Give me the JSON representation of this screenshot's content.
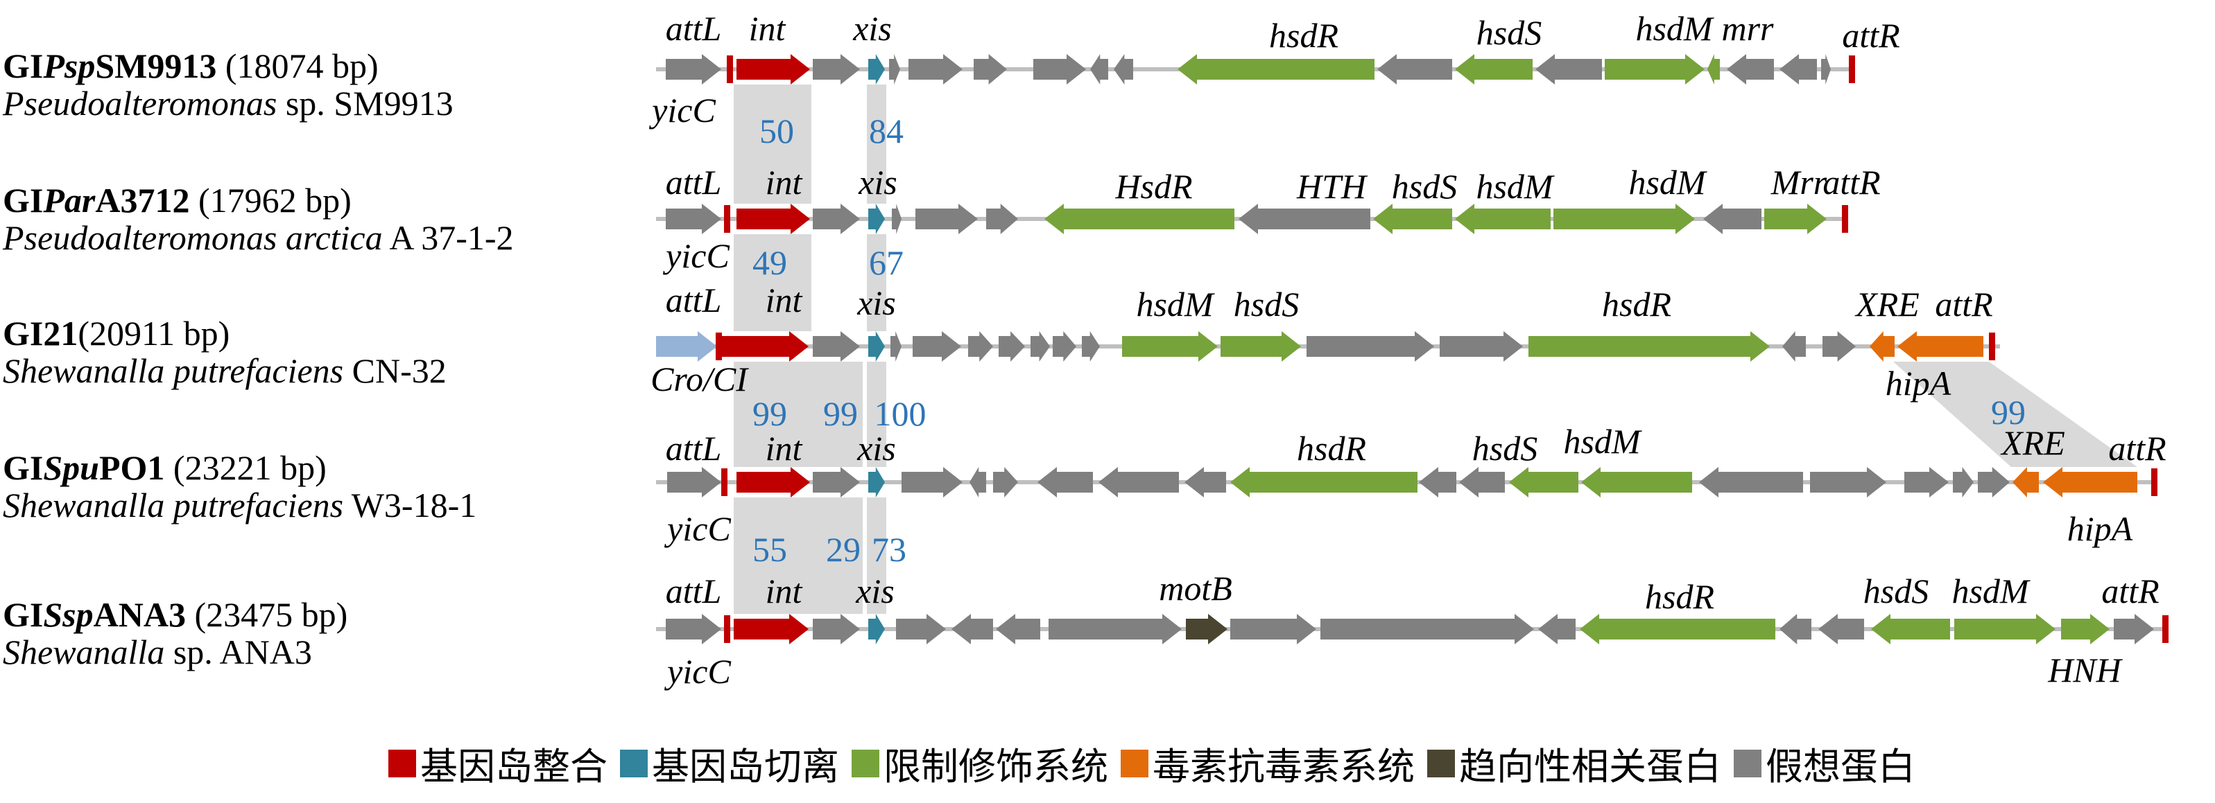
{
  "colors": {
    "integration": "#c00000",
    "excision": "#31849b",
    "restriction_modification": "#77a33b",
    "toxin_antitoxin": "#e36c0a",
    "motility": "#4a4530",
    "hypothetical": "#808080",
    "regulator": "#95b3d7",
    "similarity_band": "#d9d9d9",
    "identity_text": "#2e75b6"
  },
  "rows": [
    {
      "name_parts": [
        {
          "text": "GI",
          "italic": false
        },
        {
          "text": "Psp",
          "italic": true
        },
        {
          "text": "SM9913",
          "italic": false
        }
      ],
      "size": " (18074 bp)",
      "species_parts": [
        {
          "text": "Pseudoalteromonas",
          "italic": true
        },
        {
          "text": " sp. SM9913",
          "italic": false
        }
      ]
    },
    {
      "name_parts": [
        {
          "text": "GI",
          "italic": false
        },
        {
          "text": "Par",
          "italic": true
        },
        {
          "text": "A3712",
          "italic": false
        }
      ],
      "size": " (17962 bp)",
      "species_parts": [
        {
          "text": "Pseudoalteromonas arctica",
          "italic": true
        },
        {
          "text": " A 37-1-2",
          "italic": false
        }
      ]
    },
    {
      "name_parts": [
        {
          "text": "GI21",
          "italic": false
        }
      ],
      "size": "(20911 bp)",
      "species_parts": [
        {
          "text": "Shewanalla putrefaciens",
          "italic": true
        },
        {
          "text": " CN-32",
          "italic": false
        }
      ]
    },
    {
      "name_parts": [
        {
          "text": "GI",
          "italic": false
        },
        {
          "text": "Spu",
          "italic": true
        },
        {
          "text": "PO1",
          "italic": false
        }
      ],
      "size": " (23221 bp)",
      "species_parts": [
        {
          "text": "Shewanalla putrefaciens",
          "italic": true
        },
        {
          "text": " W3-18-1",
          "italic": false
        }
      ]
    },
    {
      "name_parts": [
        {
          "text": "GI",
          "italic": false
        },
        {
          "text": "Ssp",
          "italic": true
        },
        {
          "text": "ANA3",
          "italic": false
        }
      ],
      "size": " (23475 bp)",
      "species_parts": [
        {
          "text": "Shewanalla",
          "italic": true
        },
        {
          "text": " sp. ANA3",
          "italic": false
        }
      ]
    }
  ],
  "gene_labels": {
    "r0": [
      "attL",
      "int",
      "xis",
      "hsdR",
      "hsdS",
      "hsdM",
      "mrr",
      "attR",
      "yicC"
    ],
    "r1": [
      "attL",
      "int",
      "xis",
      "HsdR",
      "HTH",
      "hsdS",
      "hsdM",
      "hsdM",
      "Mrr",
      "attR",
      "yicC"
    ],
    "r2": [
      "attL",
      "int",
      "xis",
      "hsdM",
      "hsdS",
      "hsdR",
      "XRE",
      "attR",
      "Cro/CI",
      "hipA"
    ],
    "r3": [
      "attL",
      "int",
      "xis",
      "hsdR",
      "hsdS",
      "hsdM",
      "XRE",
      "attR",
      "yicC",
      "hipA"
    ],
    "r4": [
      "attL",
      "int",
      "xis",
      "motB",
      "hsdR",
      "hsdS",
      "hsdM",
      "attR",
      "yicC",
      "HNH"
    ]
  },
  "identity_values": [
    "50",
    "84",
    "49",
    "67",
    "99",
    "99",
    "100",
    "99",
    "55",
    "29",
    "73"
  ],
  "legend": [
    {
      "label": "基因岛整合",
      "color_key": "integration"
    },
    {
      "label": "基因岛切离",
      "color_key": "excision"
    },
    {
      "label": "限制修饰系统",
      "color_key": "restriction_modification"
    },
    {
      "label": "毒素抗毒素系统",
      "color_key": "toxin_antitoxin"
    },
    {
      "label": "趋向性相关蛋白",
      "color_key": "motility"
    },
    {
      "label": "假想蛋白",
      "color_key": "hypothetical"
    }
  ]
}
